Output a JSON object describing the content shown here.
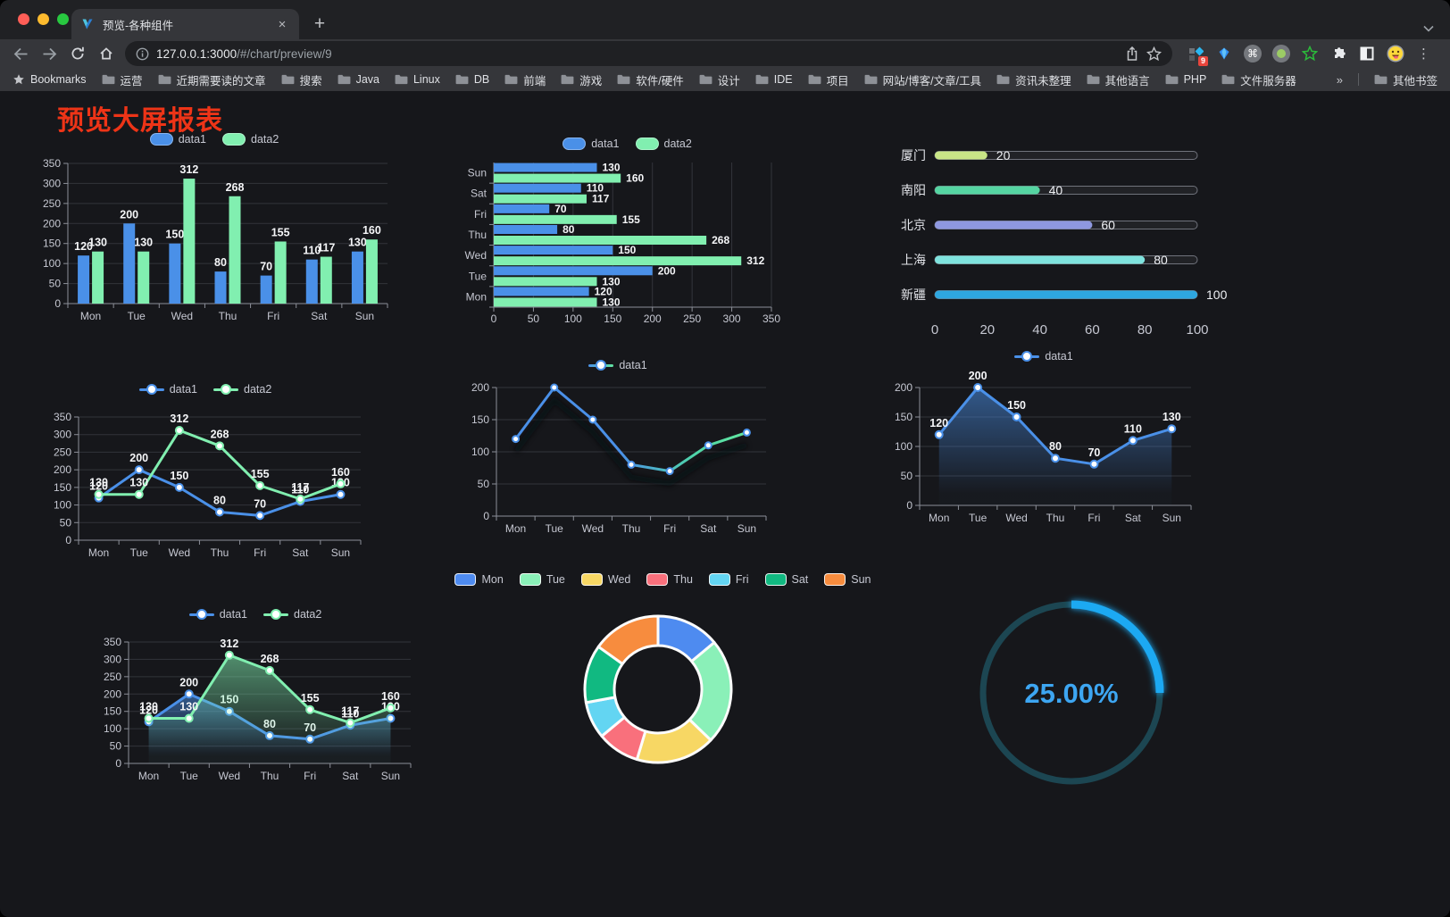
{
  "browser": {
    "tab": {
      "title": "预览-各种组件"
    },
    "url_host": "127.0.0.1:3000",
    "url_path": "/#/chart/preview/9",
    "extension_badge": "9",
    "bookmarks_label": "Bookmarks",
    "bookmarks": [
      "运营",
      "近期需要读的文章",
      "搜索",
      "Java",
      "Linux",
      "DB",
      "前端",
      "游戏",
      "软件/硬件",
      "设计",
      "IDE",
      "项目",
      "网站/博客/文章/工具",
      "资讯未整理",
      "其他语言",
      "PHP",
      "文件服务器"
    ],
    "bookmarks_overflow": "»",
    "other_bookmarks": "其他书签"
  },
  "page": {
    "title": "预览大屏报表",
    "title_color": "#ee3417"
  },
  "chart_data": [
    {
      "id": "bar-vertical",
      "type": "bar",
      "categories": [
        "Mon",
        "Tue",
        "Wed",
        "Thu",
        "Fri",
        "Sat",
        "Sun"
      ],
      "series": [
        {
          "name": "data1",
          "color": "#4a90e8",
          "values": [
            120,
            200,
            150,
            80,
            70,
            110,
            130
          ]
        },
        {
          "name": "data2",
          "color": "#81efb0",
          "values": [
            130,
            130,
            312,
            268,
            155,
            117,
            160
          ]
        }
      ],
      "ylim": [
        0,
        350
      ],
      "ytick_step": 50,
      "grid": true,
      "legend_position": "top"
    },
    {
      "id": "bar-horizontal",
      "type": "bar-horizontal",
      "categories": [
        "Mon",
        "Tue",
        "Wed",
        "Thu",
        "Fri",
        "Sat",
        "Sun"
      ],
      "series": [
        {
          "name": "data1",
          "color": "#4a90e8",
          "values": [
            120,
            200,
            150,
            80,
            70,
            110,
            130
          ]
        },
        {
          "name": "data2",
          "color": "#81efb0",
          "values": [
            130,
            130,
            312,
            268,
            155,
            117,
            160
          ]
        }
      ],
      "xlim": [
        0,
        350
      ],
      "xtick_step": 50,
      "grid": true,
      "legend_position": "top"
    },
    {
      "id": "progress",
      "type": "bar-progress",
      "rows": [
        {
          "label": "厦门",
          "value": 20,
          "color": "#c9e687"
        },
        {
          "label": "南阳",
          "value": 40,
          "color": "#55d5a2"
        },
        {
          "label": "北京",
          "value": 60,
          "color": "#8e98e0"
        },
        {
          "label": "上海",
          "value": 80,
          "color": "#7fe3de"
        },
        {
          "label": "新疆",
          "value": 100,
          "color": "#2ea7e0"
        }
      ],
      "xlim": [
        0,
        100
      ],
      "xticks": [
        0,
        20,
        40,
        60,
        80,
        100
      ]
    },
    {
      "id": "line-two",
      "type": "line",
      "categories": [
        "Mon",
        "Tue",
        "Wed",
        "Thu",
        "Fri",
        "Sat",
        "Sun"
      ],
      "series": [
        {
          "name": "data1",
          "color": "#4a90e8",
          "values": [
            120,
            200,
            150,
            80,
            70,
            110,
            130
          ]
        },
        {
          "name": "data2",
          "color": "#81efb0",
          "values": [
            130,
            130,
            312,
            268,
            155,
            117,
            160
          ]
        }
      ],
      "ylim": [
        0,
        350
      ],
      "ytick_step": 50,
      "point_labels": true,
      "legend_position": "top"
    },
    {
      "id": "line-gradient",
      "type": "line",
      "categories": [
        "Mon",
        "Tue",
        "Wed",
        "Thu",
        "Fri",
        "Sat",
        "Sun"
      ],
      "series": [
        {
          "name": "data1",
          "gradient": [
            "#4a90e8",
            "#62e6a0"
          ],
          "color": "#4a90e8",
          "values": [
            120,
            200,
            150,
            80,
            70,
            110,
            130
          ]
        }
      ],
      "ylim": [
        0,
        200
      ],
      "ytick_step": 50,
      "point_labels": false,
      "shadow": true,
      "legend_position": "top"
    },
    {
      "id": "area-one",
      "type": "area",
      "categories": [
        "Mon",
        "Tue",
        "Wed",
        "Thu",
        "Fri",
        "Sat",
        "Sun"
      ],
      "series": [
        {
          "name": "data1",
          "color": "#4a90e8",
          "area": true,
          "values": [
            120,
            200,
            150,
            80,
            70,
            110,
            130
          ]
        }
      ],
      "ylim": [
        0,
        200
      ],
      "ytick_step": 50,
      "point_labels": true,
      "legend_position": "top"
    },
    {
      "id": "area-two",
      "type": "area",
      "categories": [
        "Mon",
        "Tue",
        "Wed",
        "Thu",
        "Fri",
        "Sat",
        "Sun"
      ],
      "series": [
        {
          "name": "data1",
          "color": "#4a90e8",
          "area": true,
          "values": [
            120,
            200,
            150,
            80,
            70,
            110,
            130
          ]
        },
        {
          "name": "data2",
          "color": "#81efb0",
          "area": true,
          "values": [
            130,
            130,
            312,
            268,
            155,
            117,
            160
          ]
        }
      ],
      "ylim": [
        0,
        350
      ],
      "ytick_step": 50,
      "point_labels": true,
      "legend_position": "top"
    },
    {
      "id": "donut",
      "type": "pie",
      "categories": [
        "Mon",
        "Tue",
        "Wed",
        "Thu",
        "Fri",
        "Sat",
        "Sun"
      ],
      "values": [
        120,
        200,
        150,
        80,
        70,
        110,
        130
      ],
      "colors": [
        "#4e8bf0",
        "#8af0b8",
        "#f7d764",
        "#f9707c",
        "#63d5f2",
        "#11b981",
        "#f78c3e"
      ],
      "legend_position": "top"
    },
    {
      "id": "gauge",
      "type": "gauge",
      "percent": 25,
      "label": "25.00%",
      "color": "#1ea9f2",
      "track_color": "#1c4652",
      "text_color": "#3da6f2"
    }
  ]
}
